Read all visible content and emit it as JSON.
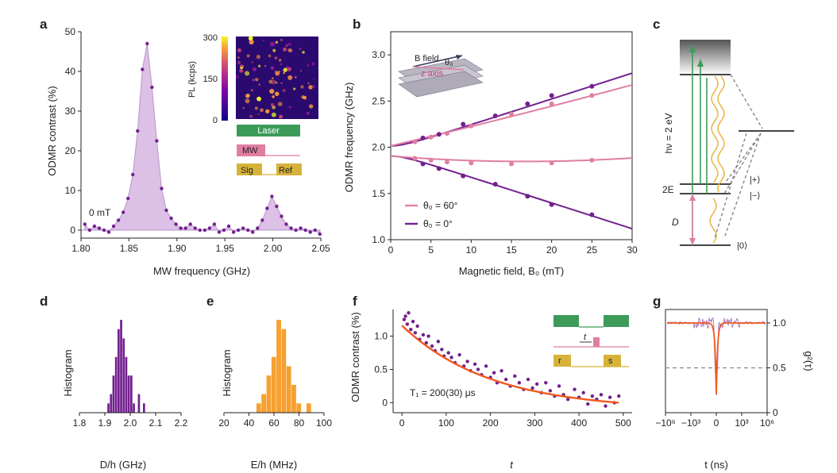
{
  "panels": {
    "a": "a",
    "b": "b",
    "c": "c",
    "d": "d",
    "e": "e",
    "f": "f",
    "g": "g"
  },
  "colors": {
    "purple": "#73208f",
    "pink": "#e07ea2",
    "fill_purple": "#dcc0e5",
    "green": "#3d9b5a",
    "orange": "#f5a030",
    "fit_orange": "#f05a1e",
    "yellow": "#d7b23a",
    "gray": "#888888"
  },
  "inset_a": {
    "pl_label": "PL (kcps)",
    "scale_ticks": [
      "300",
      "150",
      "0"
    ],
    "laser": "Laser",
    "mw": "MW",
    "sig": "Sig",
    "ref": "Ref"
  },
  "inset_b": {
    "b_field": "B field",
    "theta": "θ₀",
    "z_axis": "z axis"
  },
  "inset_f": {
    "t": "t",
    "r": "r",
    "s": "s"
  },
  "panel_c": {
    "hv": "hν = 2 eV",
    "two_e": "2E",
    "d": "D",
    "plus": "|+⟩",
    "minus": "|−⟩",
    "zero": "|0⟩"
  },
  "chart_data": [
    {
      "id": "a",
      "type": "area",
      "xlabel": "MW frequency (GHz)",
      "ylabel": "ODMR contrast (%)",
      "xlim": [
        1.8,
        2.05
      ],
      "ylim": [
        -2,
        50
      ],
      "xticks": [
        "1.80",
        "1.85",
        "1.90",
        "1.95",
        "2.00",
        "2.05"
      ],
      "yticks": [
        "0",
        "10",
        "20",
        "30",
        "40",
        "50"
      ],
      "annotation": "0 mT",
      "x": [
        1.804,
        1.809,
        1.814,
        1.819,
        1.824,
        1.829,
        1.834,
        1.839,
        1.844,
        1.849,
        1.854,
        1.859,
        1.864,
        1.869,
        1.874,
        1.879,
        1.884,
        1.889,
        1.894,
        1.899,
        1.904,
        1.909,
        1.914,
        1.919,
        1.924,
        1.929,
        1.934,
        1.939,
        1.944,
        1.949,
        1.954,
        1.959,
        1.964,
        1.969,
        1.974,
        1.979,
        1.984,
        1.989,
        1.994,
        1.999,
        2.004,
        2.009,
        2.014,
        2.019,
        2.024,
        2.029,
        2.034,
        2.039,
        2.044,
        2.049
      ],
      "y": [
        1.5,
        0.0,
        1.0,
        0.5,
        0.0,
        -0.5,
        1.0,
        2.5,
        4.5,
        8.0,
        14.0,
        25.0,
        40.5,
        47.0,
        36.0,
        22.5,
        10.5,
        5.0,
        3.0,
        1.5,
        0.5,
        0.5,
        1.5,
        0.5,
        0.0,
        0.0,
        0.5,
        1.5,
        -0.5,
        0.0,
        1.0,
        -0.5,
        0.0,
        0.5,
        0.0,
        -0.5,
        0.5,
        2.5,
        5.5,
        8.5,
        6.0,
        3.5,
        1.5,
        0.5,
        0.0,
        0.5,
        0.0,
        -0.5,
        0.0,
        -1.0
      ]
    },
    {
      "id": "b",
      "type": "scatter",
      "xlabel": "Magnetic field, B₀ (mT)",
      "ylabel": "ODMR frequency (GHz)",
      "xlim": [
        0,
        30
      ],
      "ylim": [
        1.0,
        3.25
      ],
      "xticks": [
        "0",
        "5",
        "10",
        "15",
        "20",
        "25",
        "30"
      ],
      "yticks": [
        "1.0",
        "1.5",
        "2.0",
        "2.5",
        "3.0"
      ],
      "series": [
        {
          "name": "θ₀ = 60°",
          "x": [
            3,
            5,
            7,
            10,
            15,
            20,
            25
          ],
          "upper": [
            2.06,
            2.11,
            2.15,
            2.23,
            2.36,
            2.47,
            2.56
          ],
          "lower": [
            1.88,
            1.86,
            1.84,
            1.83,
            1.82,
            1.83,
            1.86
          ]
        },
        {
          "name": "θ₀ = 0°",
          "x": [
            4,
            6,
            9,
            13,
            17,
            20,
            25
          ],
          "upper": [
            2.1,
            2.14,
            2.25,
            2.34,
            2.47,
            2.56,
            2.66
          ],
          "lower": [
            1.82,
            1.77,
            1.69,
            1.6,
            1.47,
            1.38,
            1.27
          ]
        }
      ]
    },
    {
      "id": "d",
      "type": "bar",
      "xlabel": "D/h (GHz)",
      "ylabel": "Histogram",
      "xlim": [
        1.8,
        2.2
      ],
      "xticks": [
        "1.8",
        "1.9",
        "2.0",
        "2.1",
        "2.2"
      ],
      "bin_edges": [
        1.91,
        1.92,
        1.93,
        1.94,
        1.95,
        1.96,
        1.97,
        1.98,
        1.99,
        2.0,
        2.01,
        2.02,
        2.03,
        2.04,
        2.05,
        2.06
      ],
      "counts": [
        1,
        2,
        4,
        6,
        9,
        10,
        8,
        6,
        4,
        4,
        1,
        0,
        2,
        0,
        1
      ]
    },
    {
      "id": "e",
      "type": "bar",
      "xlabel": "E/h (MHz)",
      "ylabel": "Histogram",
      "xlim": [
        20,
        100
      ],
      "xticks": [
        "20",
        "40",
        "60",
        "80",
        "100"
      ],
      "bin_edges": [
        46,
        50,
        54,
        58,
        62,
        66,
        70,
        74,
        78,
        82,
        86,
        90
      ],
      "counts": [
        1,
        2,
        4,
        6,
        10,
        9,
        5,
        3,
        1,
        0,
        1
      ]
    },
    {
      "id": "f",
      "type": "scatter",
      "xlabel": "t",
      "ylabel": "ODMR contrast (%)",
      "xlim": [
        -20,
        520
      ],
      "ylim": [
        -0.15,
        1.4
      ],
      "xticks": [
        "0",
        "100",
        "200",
        "300",
        "400",
        "500"
      ],
      "yticks": [
        "0",
        "0.5",
        "1.0"
      ],
      "annotation": "T₁ = 200(30) μs",
      "x": [
        5,
        8,
        12,
        15,
        20,
        25,
        30,
        35,
        40,
        48,
        55,
        60,
        68,
        75,
        82,
        90,
        95,
        105,
        112,
        120,
        130,
        140,
        148,
        155,
        165,
        172,
        180,
        190,
        200,
        208,
        215,
        225,
        235,
        245,
        255,
        265,
        275,
        285,
        295,
        305,
        315,
        325,
        335,
        345,
        355,
        365,
        375,
        390,
        400,
        410,
        420,
        430,
        440,
        450,
        460,
        470,
        480,
        490
      ],
      "y": [
        1.25,
        1.3,
        1.18,
        1.35,
        1.1,
        1.22,
        1.05,
        1.15,
        0.95,
        1.02,
        0.9,
        1.0,
        0.85,
        0.78,
        0.92,
        0.8,
        0.7,
        0.75,
        0.68,
        0.6,
        0.72,
        0.55,
        0.62,
        0.48,
        0.58,
        0.5,
        0.42,
        0.55,
        0.38,
        0.45,
        0.3,
        0.48,
        0.35,
        0.25,
        0.4,
        0.3,
        0.2,
        0.35,
        0.22,
        0.28,
        0.15,
        0.3,
        0.18,
        0.1,
        0.25,
        0.12,
        0.05,
        0.2,
        0.08,
        0.15,
        -0.02,
        0.1,
        0.05,
        0.12,
        -0.05,
        0.08,
        0.0,
        0.1
      ],
      "fit_tau": 200,
      "fit_amp": 1.27
    },
    {
      "id": "g",
      "type": "line",
      "xlabel": "t (ns)",
      "ylabel": "g²(τ)",
      "xticks": [
        "−10⁶",
        "−10³",
        "0",
        "10³",
        "10⁶"
      ],
      "yticks": [
        "0",
        "0.5",
        "1.0"
      ],
      "ylim": [
        0,
        1.15
      ],
      "dip_min": 0.2,
      "baseline": 1.0,
      "reference": 0.5
    }
  ]
}
